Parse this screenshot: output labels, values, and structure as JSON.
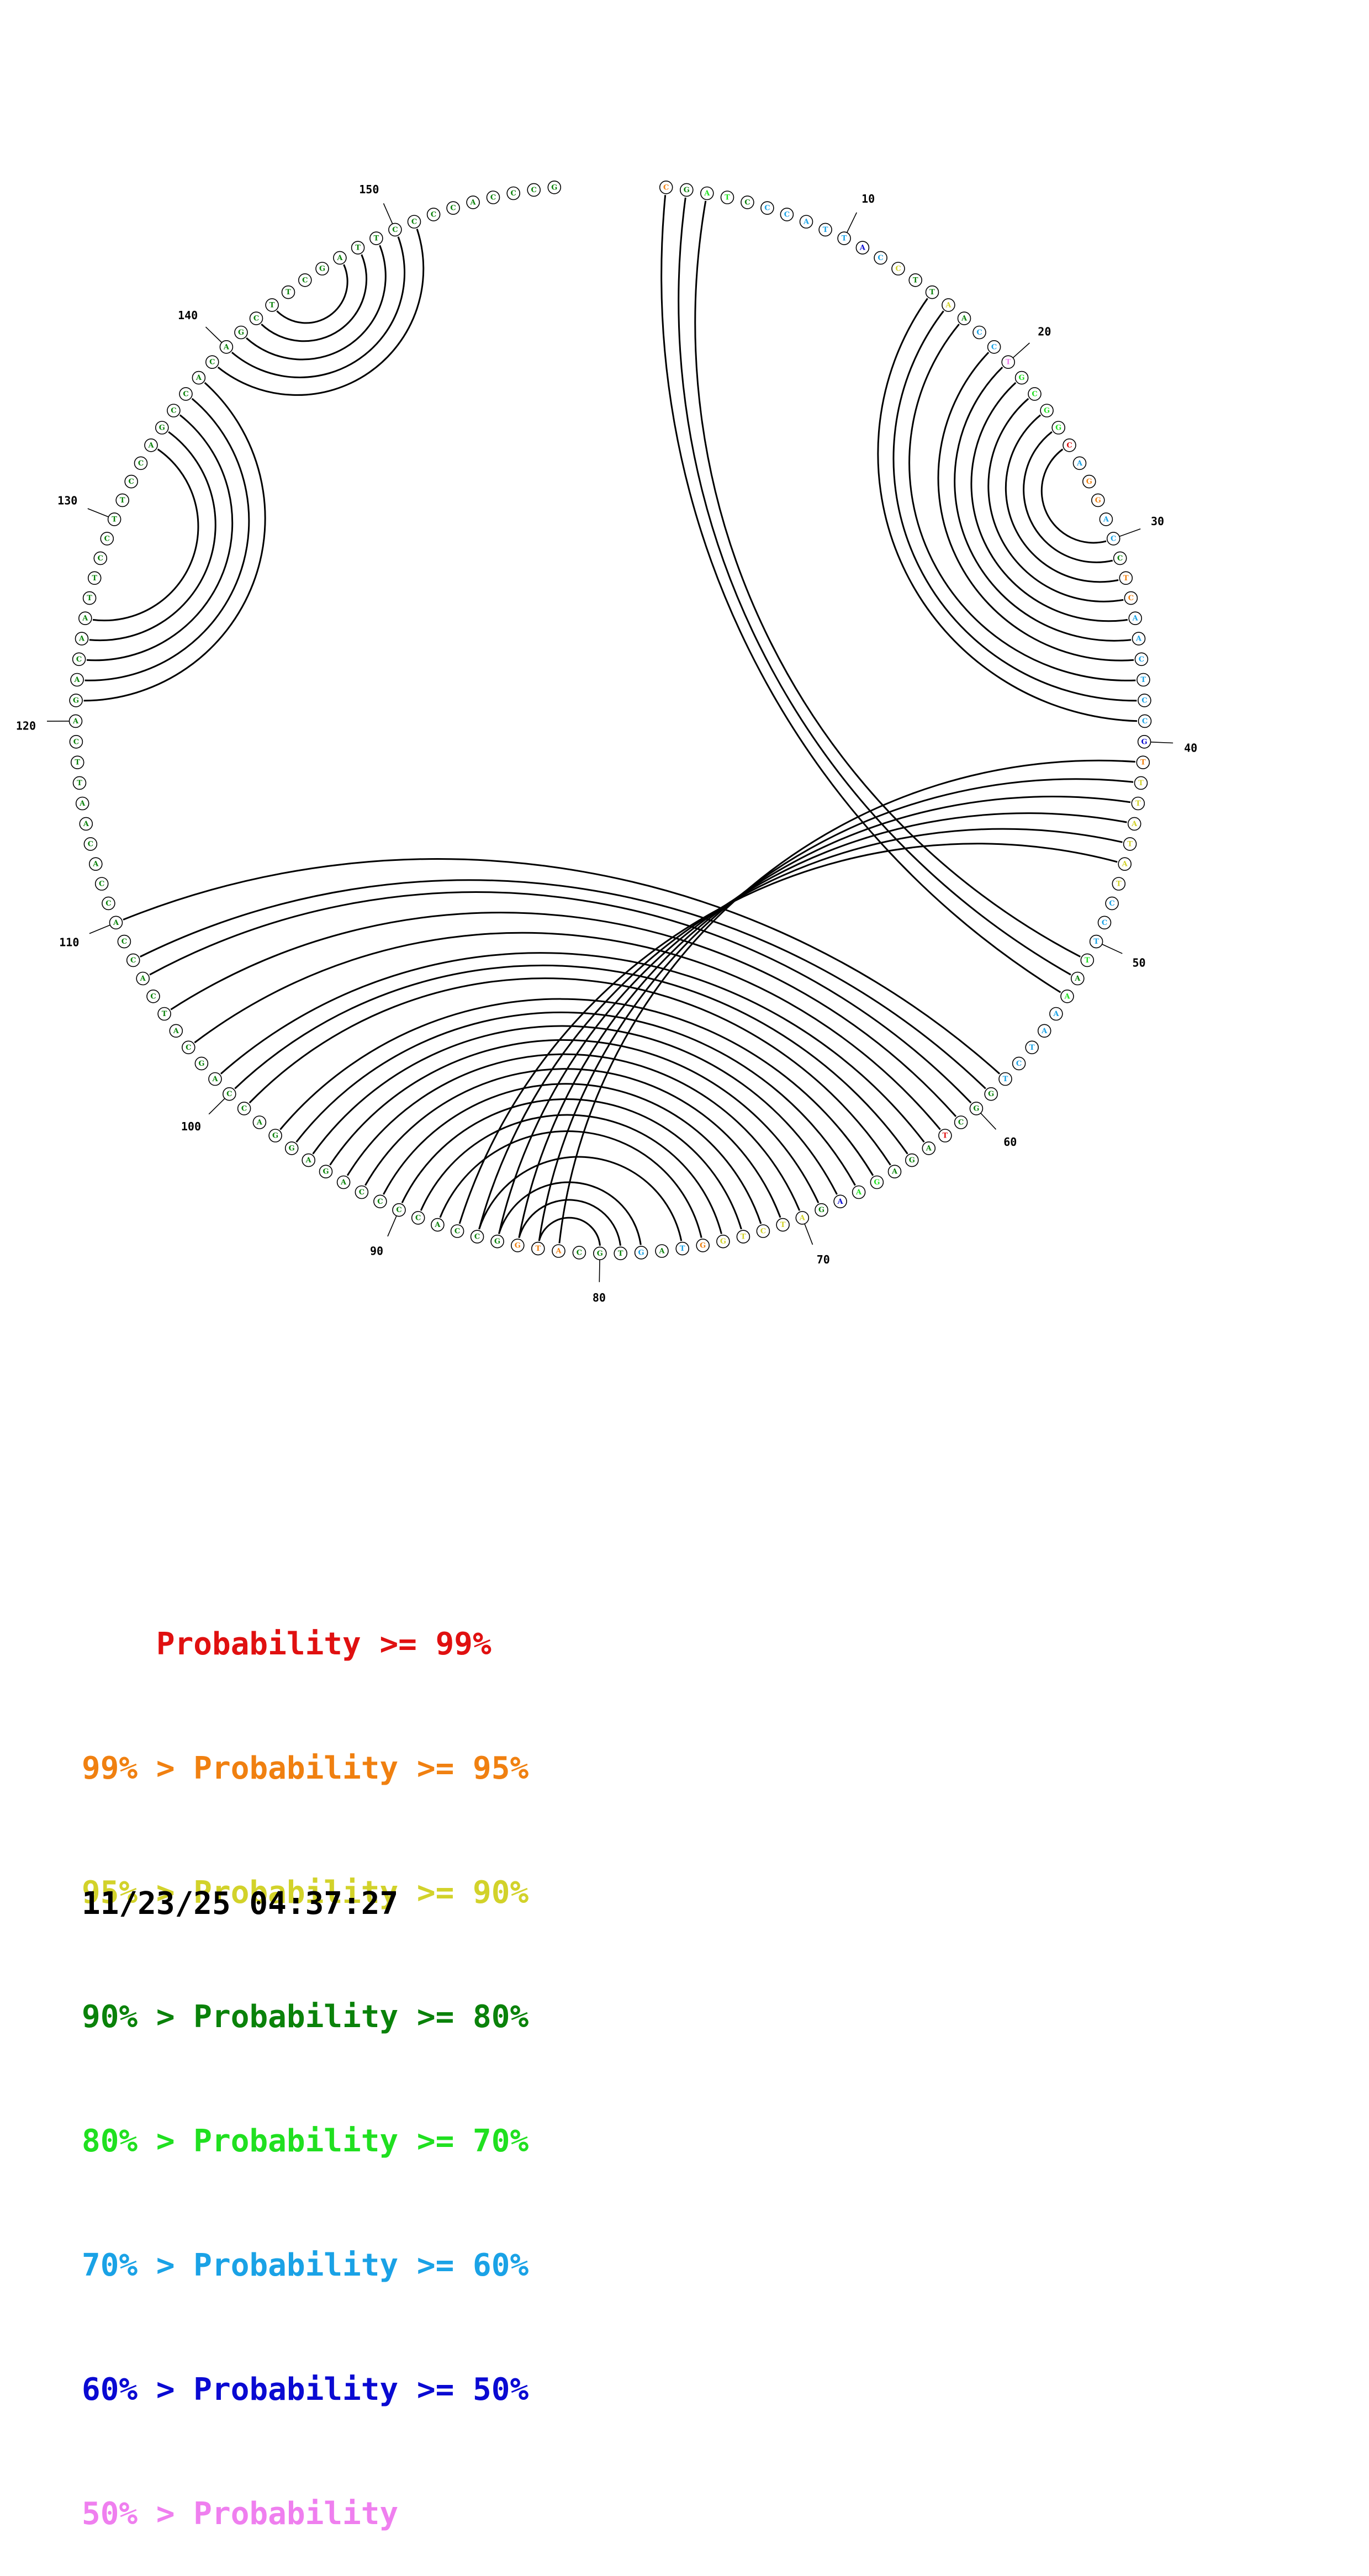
{
  "diagram": {
    "sequence": "CGATCCCATTACCTTAACCTGCGGCAGGACCTCAACTCCGTTTATATCCTTAAAATCTGGCTAGAGAAGATCTGGTAGTGCATGGCCACCCCAGAGGACCAGCATCACCACCACAATTCAGACAATTCCTTCCAGCCACAGCTTCGATTCCCCACCCG",
    "probability_levels": [
      2,
      4,
      5,
      5,
      4,
      6,
      6,
      6,
      6,
      6,
      7,
      6,
      3,
      4,
      4,
      3,
      4,
      6,
      6,
      8,
      5,
      5,
      5,
      5,
      1,
      6,
      2,
      2,
      6,
      6,
      4,
      2,
      2,
      6,
      6,
      6,
      6,
      6,
      6,
      7,
      2,
      3,
      3,
      3,
      3,
      3,
      3,
      6,
      6,
      6,
      5,
      4,
      5,
      6,
      6,
      6,
      6,
      6,
      4,
      4,
      4,
      1,
      4,
      4,
      4,
      5,
      5,
      7,
      4,
      3,
      3,
      3,
      3,
      3,
      2,
      6,
      4,
      6,
      4,
      4,
      4,
      2,
      2,
      2,
      4,
      4,
      4,
      4,
      4,
      4,
      4,
      4,
      4,
      4,
      4,
      4,
      4,
      4,
      4,
      4,
      4,
      4,
      4,
      4,
      4,
      4,
      4,
      4,
      4,
      4,
      4,
      4,
      4,
      4,
      4,
      4,
      4,
      4,
      4,
      4,
      4,
      4,
      4,
      4,
      4,
      4,
      4,
      4,
      4,
      4,
      4,
      4,
      4,
      4,
      4,
      4,
      4,
      4,
      4,
      4,
      4,
      4,
      4,
      4,
      4,
      4,
      4,
      4,
      4,
      4,
      4,
      4,
      4,
      4,
      4,
      4
    ],
    "pairs": [
      [
        1,
        53
      ],
      [
        2,
        52
      ],
      [
        3,
        51
      ],
      [
        15,
        39
      ],
      [
        16,
        38
      ],
      [
        17,
        37
      ],
      [
        19,
        36
      ],
      [
        20,
        35
      ],
      [
        21,
        34
      ],
      [
        22,
        33
      ],
      [
        23,
        32
      ],
      [
        24,
        31
      ],
      [
        25,
        30
      ],
      [
        41,
        82
      ],
      [
        42,
        83
      ],
      [
        43,
        84
      ],
      [
        44,
        85
      ],
      [
        45,
        86
      ],
      [
        46,
        87
      ],
      [
        58,
        110
      ],
      [
        59,
        108
      ],
      [
        60,
        107
      ],
      [
        61,
        105
      ],
      [
        62,
        103
      ],
      [
        63,
        101
      ],
      [
        64,
        100
      ],
      [
        65,
        99
      ],
      [
        66,
        97
      ],
      [
        67,
        96
      ],
      [
        68,
        95
      ],
      [
        69,
        94
      ],
      [
        70,
        93
      ],
      [
        71,
        92
      ],
      [
        72,
        91
      ],
      [
        73,
        90
      ],
      [
        74,
        89
      ],
      [
        75,
        88
      ],
      [
        76,
        86
      ],
      [
        78,
        85
      ],
      [
        79,
        84
      ],
      [
        80,
        83
      ],
      [
        121,
        138
      ],
      [
        122,
        137
      ],
      [
        123,
        136
      ],
      [
        124,
        135
      ],
      [
        125,
        134
      ],
      [
        139,
        151
      ],
      [
        140,
        150
      ],
      [
        141,
        149
      ],
      [
        142,
        148
      ],
      [
        143,
        147
      ]
    ],
    "tick_labels": [
      "10",
      "20",
      "30",
      "40",
      "50",
      "60",
      "70",
      "80",
      "90",
      "100",
      "110",
      "120",
      "130",
      "140",
      "150"
    ]
  },
  "level_colors": [
    "#e01010",
    "#f08010",
    "#d2d22a",
    "#0a820a",
    "#20e020",
    "#1aa2e6",
    "#0a0ad2",
    "#ef7fef"
  ],
  "legend": [
    {
      "prefix": "    ",
      "middle": "Probability",
      "suffix": " >= 99%",
      "color": "#e01010"
    },
    {
      "prefix": "99% > ",
      "middle": "Probability",
      "suffix": " >= 95%",
      "color": "#f08010"
    },
    {
      "prefix": "95% > ",
      "middle": "Probability",
      "suffix": " >= 90%",
      "color": "#d2d22a"
    },
    {
      "prefix": "90% > ",
      "middle": "Probability",
      "suffix": " >= 80%",
      "color": "#0a820a"
    },
    {
      "prefix": "80% > ",
      "middle": "Probability",
      "suffix": " >= 70%",
      "color": "#20e020"
    },
    {
      "prefix": "70% > ",
      "middle": "Probability",
      "suffix": " >= 60%",
      "color": "#1aa2e6"
    },
    {
      "prefix": "60% > ",
      "middle": "Probability",
      "suffix": " >= 50%",
      "color": "#0a0ad2"
    },
    {
      "prefix": "50% > ",
      "middle": "Probability",
      "suffix": "",
      "color": "#ef7fef"
    }
  ],
  "timestamp": "11/23/25 04:37:27"
}
